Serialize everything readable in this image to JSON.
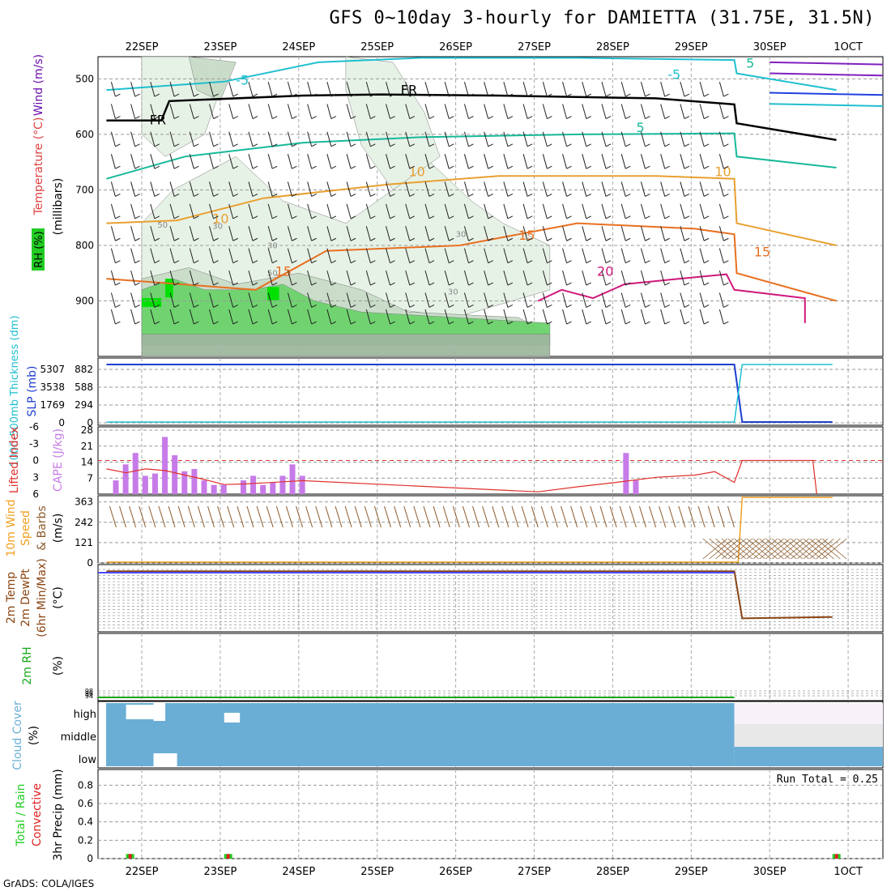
{
  "title": "GFS 0~10day 3-hourly for DAMIETTA (31.75E, 31.5N)",
  "credit": "GrADS: COLA/IGES",
  "colors": {
    "rh_light": "#e6f2e6",
    "rh_mid": "#c8dcc8",
    "rh_dark": "#9fb79f",
    "rh_green": "#6cd36c",
    "rh_bright": "#00e000",
    "slp": "#1f3fcf",
    "thick": "#20c0d0",
    "cape": "#c77be8",
    "li": "#e0302a",
    "wind_speed": "#f0a020",
    "barb": "#8b5a2b",
    "rh2m": "#1aa81a",
    "cloud": "#6aaed6",
    "cloud_gap": "#e8e8e8",
    "rain": "#22cc22",
    "conv": "#e02020"
  },
  "chart_data": [
    {
      "type": "line",
      "panel": "upper_air",
      "ylabel_parts": [
        "Wind (m/s)",
        "Temperature (°C)",
        "RH (%)",
        "(millibars)"
      ],
      "yticks": [
        500,
        600,
        700,
        800,
        900
      ],
      "ylim": [
        1000,
        460
      ],
      "xticks": [
        "22SEP",
        "23SEP",
        "24SEP",
        "25SEP",
        "26SEP",
        "27SEP",
        "28SEP",
        "29SEP",
        "30SEP",
        "1OCT"
      ],
      "xticks_top": [
        "22SEP",
        "23SEP",
        "24SEP",
        "25SEP",
        "26SEP",
        "27SEP",
        "28SEP",
        "29SEP",
        "30SEP",
        "1OCT"
      ],
      "temp_isotherms": [
        {
          "label": "FR",
          "value": 0,
          "points": [
            [
              0,
              575
            ],
            [
              0.7,
              575
            ],
            [
              0.8,
              540
            ],
            [
              2.5,
              530
            ],
            [
              3.5,
              528
            ],
            [
              5,
              530
            ],
            [
              7,
              535
            ],
            [
              8,
              546
            ],
            [
              8.03,
              580
            ],
            [
              9.3,
              610
            ]
          ]
        },
        {
          "label": "-5",
          "value": -5,
          "points": [
            [
              0,
              520
            ],
            [
              1.5,
              505
            ],
            [
              2.7,
              470
            ],
            [
              4,
              462
            ],
            [
              6,
              462
            ],
            [
              8,
              466
            ],
            [
              8.03,
              490
            ],
            [
              9.3,
              520
            ]
          ]
        },
        {
          "label": "5",
          "value": 5,
          "points": [
            [
              0,
              680
            ],
            [
              1,
              640
            ],
            [
              2.5,
              615
            ],
            [
              4,
              605
            ],
            [
              6,
              600
            ],
            [
              8,
              598
            ],
            [
              8.03,
              640
            ],
            [
              9.3,
              660
            ]
          ]
        },
        {
          "label": "10",
          "value": 10,
          "points": [
            [
              0,
              760
            ],
            [
              0.9,
              755
            ],
            [
              2,
              715
            ],
            [
              3.6,
              690
            ],
            [
              5,
              675
            ],
            [
              7,
              675
            ],
            [
              8,
              680
            ],
            [
              8.03,
              760
            ],
            [
              9.3,
              800
            ]
          ]
        },
        {
          "label": "15",
          "value": 15,
          "points": [
            [
              0,
              860
            ],
            [
              1.9,
              880
            ],
            [
              2.8,
              810
            ],
            [
              4.5,
              800
            ],
            [
              6,
              760
            ],
            [
              7.5,
              770
            ],
            [
              8.0,
              780
            ],
            [
              8.03,
              850
            ],
            [
              9.3,
              900
            ]
          ]
        },
        {
          "label": "20",
          "value": 20,
          "points": [
            [
              5.5,
              900
            ],
            [
              5.8,
              880
            ],
            [
              6.2,
              895
            ],
            [
              6.6,
              870
            ],
            [
              7.3,
              860
            ],
            [
              7.9,
              852
            ],
            [
              8.0,
              880
            ],
            [
              8.9,
              895
            ],
            [
              8.9,
              940
            ]
          ]
        }
      ],
      "contour_labels": [
        "-5",
        "-5",
        "FR",
        "FR",
        "5",
        "5",
        "10",
        "10",
        "10",
        "15",
        "15",
        "15",
        "20",
        "30",
        "30",
        "30",
        "30",
        "50",
        "50"
      ],
      "rh_ticks": [
        "30",
        "50"
      ]
    },
    {
      "type": "line",
      "panel": "slp_thickness",
      "ylabel": [
        "1000-500mb Thickness (dm)",
        "SLP (mb)"
      ],
      "thickness_ticks": [
        "5307",
        "3538",
        "1769",
        "0"
      ],
      "slp_ticks": [
        "882",
        "588",
        "294",
        "0"
      ],
      "ylim": [
        0,
        1000
      ],
      "slp": [
        {
          "x": 0,
          "y": 1000
        },
        {
          "x": 8.0,
          "y": 1000
        },
        {
          "x": 8.1,
          "y": 0
        },
        {
          "x": 9.25,
          "y": 0
        }
      ],
      "thickness": [
        {
          "x": 0,
          "y": 0
        },
        {
          "x": 8.0,
          "y": 0
        },
        {
          "x": 8.1,
          "y": 1000
        },
        {
          "x": 9.25,
          "y": 1000
        }
      ]
    },
    {
      "type": "bar",
      "panel": "cape_li",
      "ylabel": [
        "Lifted Index",
        "CAPE (J/kg)"
      ],
      "li_ticks": [
        "-6",
        "-3",
        "0",
        "3",
        "6"
      ],
      "cape_ticks": [
        "28",
        "21",
        "14",
        "7"
      ],
      "cape_values": [
        [
          0.125,
          6
        ],
        [
          0.25,
          13
        ],
        [
          0.375,
          18
        ],
        [
          0.5,
          8
        ],
        [
          0.625,
          9
        ],
        [
          0.75,
          25
        ],
        [
          0.875,
          17
        ],
        [
          1.0,
          10
        ],
        [
          1.125,
          11
        ],
        [
          1.25,
          6
        ],
        [
          1.375,
          4
        ],
        [
          1.5,
          4
        ],
        [
          1.75,
          6
        ],
        [
          1.875,
          8
        ],
        [
          2.0,
          4
        ],
        [
          2.125,
          5
        ],
        [
          2.25,
          8
        ],
        [
          2.375,
          13
        ],
        [
          2.5,
          8
        ],
        [
          6.625,
          18
        ],
        [
          6.75,
          6
        ]
      ],
      "li_values": [
        [
          0,
          1.5
        ],
        [
          0.25,
          2.2
        ],
        [
          0.5,
          1.5
        ],
        [
          0.75,
          1.8
        ],
        [
          1.0,
          2.6
        ],
        [
          1.25,
          3.4
        ],
        [
          1.5,
          4.3
        ],
        [
          1.75,
          4.2
        ],
        [
          2.0,
          4.0
        ],
        [
          2.25,
          3.8
        ],
        [
          2.5,
          3.6
        ],
        [
          5.5,
          5.6
        ],
        [
          6.0,
          4.7
        ],
        [
          6.5,
          3.9
        ],
        [
          7.0,
          3.0
        ],
        [
          7.5,
          2.6
        ],
        [
          7.75,
          2.0
        ],
        [
          8.0,
          3.9
        ],
        [
          8.1,
          0
        ],
        [
          9.0,
          0
        ],
        [
          9.05,
          6
        ]
      ],
      "li_ylim": [
        -6,
        6
      ],
      "cape_ylim": [
        0,
        28
      ]
    },
    {
      "type": "line",
      "panel": "wind10m",
      "ylabel": [
        "10m Wind",
        "Speed",
        "& Barbs",
        "(m/s)"
      ],
      "yticks": [
        "363",
        "242",
        "121",
        "0"
      ],
      "ylim": [
        0,
        400
      ],
      "speed": [
        {
          "x": 0,
          "y": 5
        },
        {
          "x": 8.05,
          "y": 5
        },
        {
          "x": 8.1,
          "y": 390
        },
        {
          "x": 9.25,
          "y": 390
        }
      ]
    },
    {
      "type": "line",
      "panel": "temp2m",
      "ylabel": [
        "2m Temp",
        "2m DewPt",
        "(6hr Min/Max)",
        "(°C)"
      ],
      "ylim": [
        0,
        1
      ],
      "temp": [
        {
          "x": 0,
          "y": 0.9
        },
        {
          "x": 8.0,
          "y": 0.9
        },
        {
          "x": 8.1,
          "y": 0.2
        },
        {
          "x": 9.25,
          "y": 0.22
        }
      ]
    },
    {
      "type": "line",
      "panel": "rh2m",
      "ylabel": [
        "2m RH",
        "(%)"
      ],
      "yticks": [
        "98",
        "96",
        "94"
      ],
      "rh": [
        {
          "x": 0,
          "y": 96
        },
        {
          "x": 8.0,
          "y": 96
        }
      ]
    },
    {
      "type": "heatmap",
      "panel": "cloud",
      "ylabel": [
        "Cloud Cover",
        "(%)"
      ],
      "levels": [
        "high",
        "middle",
        "low"
      ]
    },
    {
      "type": "bar",
      "panel": "precip",
      "ylabel": [
        "Total / Rain",
        "Convective",
        "3hr Precip (mm)"
      ],
      "yticks": [
        "0.8",
        "0.6",
        "0.4",
        "0.2",
        "0"
      ],
      "yticks_extra": [
        "0.8",
        "0.6",
        "0.4",
        "0.2",
        "0"
      ],
      "ylim": [
        0,
        0.9
      ],
      "run_total": "Run Total = 0.25",
      "bars": [
        [
          0.25,
          0.05
        ],
        [
          1.5,
          0.05
        ],
        [
          9.25,
          0.05
        ]
      ]
    }
  ]
}
